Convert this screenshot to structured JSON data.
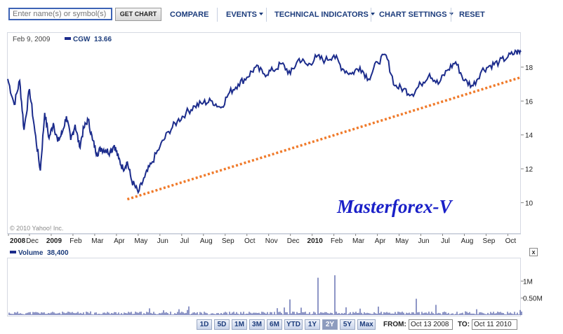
{
  "toolbar": {
    "search_placeholder": "Enter name(s) or symbol(s)",
    "get_chart": "GET CHART",
    "compare": "COMPARE",
    "events": "EVENTS",
    "technical_indicators": "TECHNICAL INDICATORS",
    "chart_settings": "CHART SETTINGS",
    "reset": "RESET"
  },
  "legend": {
    "date": "Feb 9, 2009",
    "symbol": "CGW",
    "price": "13.66"
  },
  "copyright": "© 2010 Yahoo! Inc.",
  "watermark": "Masterforex-V",
  "volume_legend": {
    "label": "Volume",
    "value": "38,400"
  },
  "close_label": "x",
  "range_buttons": [
    "1D",
    "5D",
    "1M",
    "3M",
    "6M",
    "YTD",
    "1Y",
    "2Y",
    "5Y",
    "Max"
  ],
  "range_active": "2Y",
  "date_range": {
    "from_label": "FROM:",
    "from": "Oct 13 2008",
    "to_label": "TO:",
    "to": "Oct 11 2010"
  },
  "colors": {
    "price_line": "#1c2c8c",
    "trendline": "#f07a2a",
    "volume_bars": "#1c2c8c",
    "watermark": "#1a20c8"
  },
  "chart_data": [
    {
      "type": "line",
      "series": [
        {
          "name": "CGW",
          "x": [
            0,
            0.3,
            0.55,
            0.75,
            1.0,
            1.25,
            1.5,
            1.7,
            1.9,
            2.1,
            2.3,
            2.5,
            2.7,
            2.9,
            3.1,
            3.3,
            3.5,
            3.7,
            3.9,
            4.1,
            4.3,
            4.5,
            4.7,
            4.9,
            5.1,
            5.3,
            5.5,
            5.7,
            6.0,
            6.3,
            6.6,
            7.0,
            7.4,
            7.8,
            8.2,
            8.6,
            9.0,
            9.4,
            9.8,
            10.2,
            10.6,
            11.0,
            11.4,
            11.8,
            12.2,
            12.6,
            13.0,
            13.4,
            13.8,
            14.2,
            14.6,
            15.0,
            15.4,
            15.8,
            16.2,
            16.6,
            17.0,
            17.4,
            17.8,
            18.2,
            18.6,
            19.0,
            19.4,
            19.8,
            20.2,
            20.6,
            21.0,
            21.4,
            21.8,
            22.2,
            22.6,
            23.0,
            23.4,
            23.6
          ],
          "values": [
            17.3,
            15.8,
            17.2,
            14.3,
            16.7,
            14.2,
            11.9,
            15.3,
            13.8,
            14.7,
            13.6,
            14.1,
            15.1,
            13.7,
            14.6,
            13.3,
            14.4,
            14.9,
            13.7,
            12.9,
            13.2,
            13.1,
            13.0,
            13.4,
            12.6,
            12.0,
            12.4,
            11.3,
            10.6,
            11.5,
            12.3,
            13.3,
            14.2,
            14.8,
            15.3,
            15.7,
            15.9,
            16.0,
            15.6,
            16.5,
            17.0,
            17.4,
            18.0,
            17.6,
            17.8,
            18.2,
            17.6,
            18.5,
            18.1,
            18.6,
            18.4,
            18.7,
            17.9,
            17.6,
            18.0,
            17.3,
            18.3,
            18.7,
            16.9,
            16.7,
            16.4,
            17.0,
            17.6,
            17.0,
            17.8,
            18.3,
            17.2,
            16.9,
            17.8,
            18.1,
            18.3,
            18.6,
            18.9,
            18.9
          ]
        }
      ],
      "annotations": [
        {
          "type": "trendline",
          "from": [
            5.5,
            10.2
          ],
          "to": [
            23.6,
            17.4
          ]
        }
      ],
      "x_tick_labels": [
        "2008",
        "Dec",
        "2009",
        "Feb",
        "Mar",
        "Apr",
        "May",
        "Jun",
        "Jul",
        "Aug",
        "Sep",
        "Oct",
        "Nov",
        "Dec",
        "2010",
        "Feb",
        "Mar",
        "Apr",
        "May",
        "Jun",
        "Jul",
        "Aug",
        "Sep",
        "Oct"
      ],
      "y_ticks": [
        10,
        12,
        14,
        16,
        18
      ],
      "ylim": [
        8.2,
        19.4
      ],
      "xlim": [
        0,
        23.6
      ],
      "grid": false
    },
    {
      "type": "bar",
      "series": [
        {
          "name": "Volume"
        }
      ],
      "spikes": [
        {
          "x": 14.2,
          "value": 1100000
        },
        {
          "x": 15.0,
          "value": 1170000
        },
        {
          "x": 18.7,
          "value": 480000
        },
        {
          "x": 12.9,
          "value": 460000
        },
        {
          "x": 19.6,
          "value": 300000
        },
        {
          "x": 17.0,
          "value": 250000
        },
        {
          "x": 13.4,
          "value": 220000
        },
        {
          "x": 8.2,
          "value": 150000
        }
      ],
      "y_ticks": [
        {
          "value": 500000,
          "label": "0.50M"
        },
        {
          "value": 1000000,
          "label": "1M"
        }
      ],
      "ylim": [
        0,
        1400000
      ],
      "typical_volume": 60000
    }
  ]
}
